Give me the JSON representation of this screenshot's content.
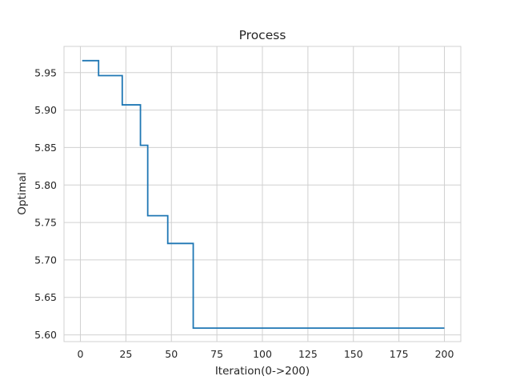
{
  "chart_data": {
    "type": "line",
    "title": "Process",
    "xlabel": "Iteration(0->200)",
    "ylabel": "Optimal",
    "xlim": [
      -9,
      209
    ],
    "ylim": [
      5.591,
      5.985
    ],
    "xticks": [
      0,
      25,
      50,
      75,
      100,
      125,
      150,
      175,
      200
    ],
    "yticks": [
      5.6,
      5.65,
      5.7,
      5.75,
      5.8,
      5.85,
      5.9,
      5.95
    ],
    "ytick_labels": [
      "5.60",
      "5.65",
      "5.70",
      "5.75",
      "5.80",
      "5.85",
      "5.90",
      "5.95"
    ],
    "grid": true,
    "line_color": "#1f77b4",
    "series": [
      {
        "step": "post",
        "x": [
          1,
          10,
          23,
          33,
          37,
          48,
          62,
          200
        ],
        "y": [
          5.966,
          5.946,
          5.907,
          5.853,
          5.759,
          5.722,
          5.609,
          5.609
        ]
      }
    ]
  }
}
